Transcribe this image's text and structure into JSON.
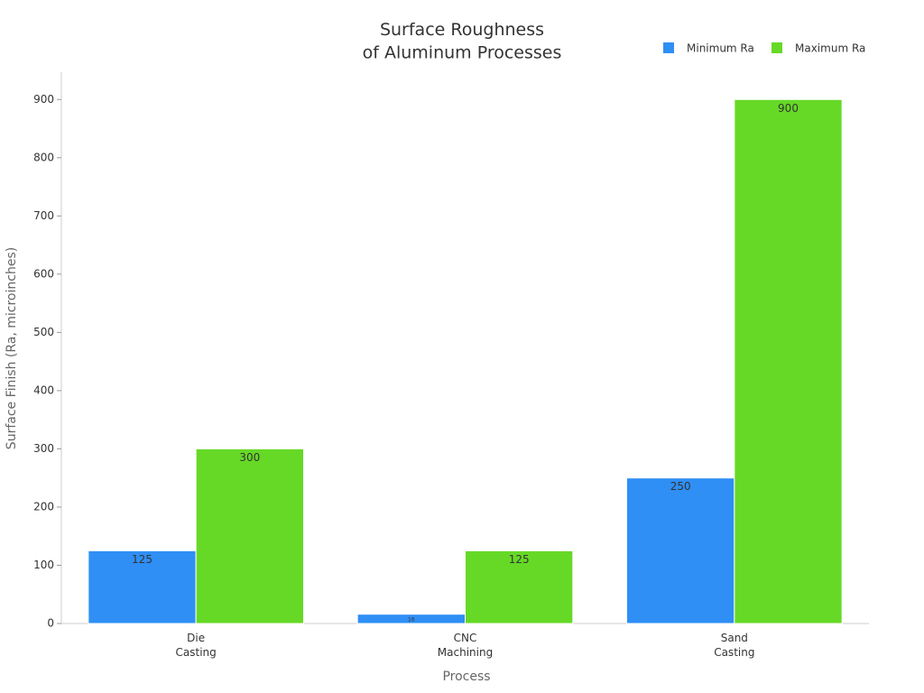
{
  "chart_data": {
    "type": "bar",
    "title": "Surface Roughness\nof Aluminum Processes",
    "x_label": "Process",
    "y_label": "Surface Finish (Ra, microinches)",
    "categories": [
      "Die\nCasting",
      "CNC\nMachining",
      "Sand\nCasting"
    ],
    "series": [
      {
        "name": "Minimum Ra",
        "color": "#2f8ff5",
        "values": [
          125,
          16,
          250
        ]
      },
      {
        "name": "Maximum Ra",
        "color": "#66d926",
        "values": [
          300,
          125,
          900
        ]
      }
    ],
    "ylim": [
      0,
      950
    ],
    "yticks": [
      0,
      100,
      200,
      300,
      400,
      500,
      600,
      700,
      800,
      900
    ],
    "legend": "upper right"
  }
}
